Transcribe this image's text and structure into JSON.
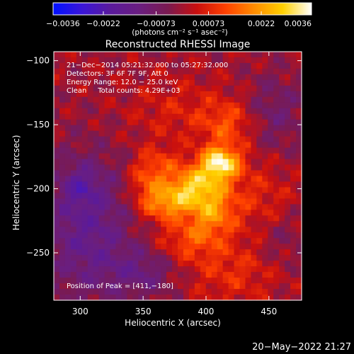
{
  "chart_data": {
    "type": "heatmap",
    "title": "Reconstructed RHESSI Image",
    "xlabel": "Heliocentric X (arcsec)",
    "ylabel": "Heliocentric Y (arcsec)",
    "xlim": [
      279,
      476
    ],
    "ylim": [
      -287,
      -93
    ],
    "x_ticks": [
      300,
      350,
      400,
      450
    ],
    "x_tick_labels": [
      "300",
      "350",
      "400",
      "450"
    ],
    "y_ticks": [
      -100,
      -150,
      -200,
      -250
    ],
    "y_tick_labels": [
      "−100",
      "−150",
      "−200",
      "−250"
    ],
    "colorbar": {
      "unit_label": "(photons cm⁻² s⁻¹ asec⁻²)",
      "range": [
        -0.0036,
        0.0036
      ],
      "tick_values": [
        -0.0036,
        -0.0022,
        -0.00073,
        0.00073,
        0.0022,
        0.0036
      ],
      "tick_labels": [
        "−0.0036",
        "−0.0022",
        "−0.00073",
        "0.00073",
        "0.0022",
        "0.0036"
      ]
    },
    "annotations": [
      "21−Dec−2014 05:21:32.000 to 05:27:32.000",
      "Detectors: 3F 6F 7F 9F, Att 0",
      "Energy Range: 12.0 − 25.0 keV",
      "Clean     Total counts: 4.29E+03"
    ],
    "peak_label": "Position of Peak = [411,−180]",
    "peak": [
      411,
      -180
    ],
    "sources": [
      {
        "x": 411,
        "y": -180,
        "sx": 11,
        "sy": 9,
        "amp": 0.0032
      },
      {
        "x": 390,
        "y": -198,
        "sx": 16,
        "sy": 11,
        "amp": 0.0024
      },
      {
        "x": 368,
        "y": -212,
        "sx": 14,
        "sy": 9,
        "amp": 0.0018
      },
      {
        "x": 352,
        "y": -195,
        "sx": 10,
        "sy": 12,
        "amp": 0.0011
      },
      {
        "x": 405,
        "y": -218,
        "sx": 13,
        "sy": 13,
        "amp": 0.0017
      },
      {
        "x": 386,
        "y": -240,
        "sx": 18,
        "sy": 12,
        "amp": 0.0011
      },
      {
        "x": 418,
        "y": -150,
        "sx": 14,
        "sy": 13,
        "amp": 0.0011
      },
      {
        "x": 363,
        "y": -180,
        "sx": 12,
        "sy": 10,
        "amp": 0.0008
      },
      {
        "x": 380,
        "y": -140,
        "sx": 30,
        "sy": 18,
        "amp": 0.0006
      },
      {
        "x": 440,
        "y": -205,
        "sx": 20,
        "sy": 20,
        "amp": 0.0007
      },
      {
        "x": 420,
        "y": -265,
        "sx": 25,
        "sy": 18,
        "amp": 0.0008
      },
      {
        "x": 305,
        "y": -230,
        "sx": 25,
        "sy": 40,
        "amp": -0.0015
      },
      {
        "x": 300,
        "y": -198,
        "sx": 10,
        "sy": 10,
        "amp": -0.0009
      },
      {
        "x": 350,
        "y": -265,
        "sx": 20,
        "sy": 14,
        "amp": -0.001
      },
      {
        "x": 455,
        "y": -140,
        "sx": 18,
        "sy": 22,
        "amp": -0.0008
      },
      {
        "x": 460,
        "y": -240,
        "sx": 14,
        "sy": 14,
        "amp": -0.0005
      }
    ],
    "grid": false,
    "colormap": "rainbow-like blue-purple-red-orange-yellow-white"
  },
  "footer": {
    "timestamp": "20−May−2022 21:27"
  },
  "colors": {
    "background": "#000000",
    "text": "#ffffff",
    "colormap_stops": [
      "#0010ff",
      "#3a15d8",
      "#5a1a9c",
      "#6a1e80",
      "#7a1a50",
      "#c80f0f",
      "#ff4000",
      "#ff8c00",
      "#ffd000",
      "#ffffff"
    ]
  }
}
